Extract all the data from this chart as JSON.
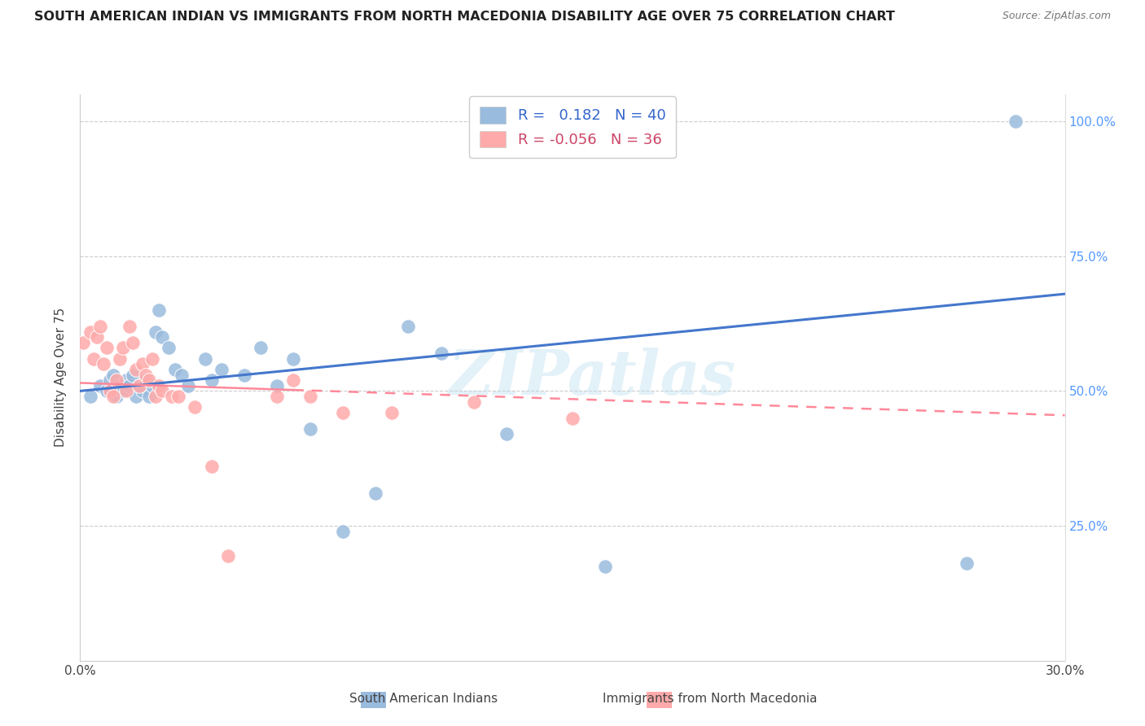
{
  "title": "SOUTH AMERICAN INDIAN VS IMMIGRANTS FROM NORTH MACEDONIA DISABILITY AGE OVER 75 CORRELATION CHART",
  "source": "Source: ZipAtlas.com",
  "ylabel": "Disability Age Over 75",
  "xlim": [
    0.0,
    0.3
  ],
  "ylim": [
    0.0,
    1.05
  ],
  "xticks": [
    0.0,
    0.05,
    0.1,
    0.15,
    0.2,
    0.25,
    0.3
  ],
  "xticklabels": [
    "0.0%",
    "",
    "",
    "",
    "",
    "",
    "30.0%"
  ],
  "ytick_right_vals": [
    0.0,
    0.25,
    0.5,
    0.75,
    1.0
  ],
  "ytick_right_labels": [
    "",
    "25.0%",
    "50.0%",
    "75.0%",
    "100.0%"
  ],
  "legend_label1": "South American Indians",
  "legend_label2": "Immigrants from North Macedonia",
  "r1": 0.182,
  "n1": 40,
  "r2": -0.056,
  "n2": 36,
  "color_blue": "#99BBDD",
  "color_pink": "#FFAAAA",
  "line_color1": "#4477CC",
  "line_color2": "#FF8899",
  "watermark": "ZIPatlas",
  "blue_points_x": [
    0.003,
    0.006,
    0.008,
    0.009,
    0.01,
    0.011,
    0.012,
    0.013,
    0.014,
    0.015,
    0.016,
    0.017,
    0.018,
    0.019,
    0.02,
    0.021,
    0.022,
    0.023,
    0.024,
    0.025,
    0.027,
    0.029,
    0.031,
    0.033,
    0.038,
    0.04,
    0.043,
    0.05,
    0.055,
    0.06,
    0.065,
    0.07,
    0.08,
    0.09,
    0.1,
    0.11,
    0.13,
    0.16,
    0.27,
    0.285
  ],
  "blue_points_y": [
    0.49,
    0.51,
    0.5,
    0.52,
    0.53,
    0.49,
    0.51,
    0.5,
    0.52,
    0.51,
    0.53,
    0.49,
    0.51,
    0.5,
    0.52,
    0.49,
    0.51,
    0.61,
    0.65,
    0.6,
    0.58,
    0.54,
    0.53,
    0.51,
    0.56,
    0.52,
    0.54,
    0.53,
    0.58,
    0.51,
    0.56,
    0.43,
    0.24,
    0.31,
    0.62,
    0.57,
    0.42,
    0.175,
    0.18,
    1.0
  ],
  "pink_points_x": [
    0.001,
    0.003,
    0.004,
    0.005,
    0.006,
    0.007,
    0.008,
    0.009,
    0.01,
    0.011,
    0.012,
    0.013,
    0.014,
    0.015,
    0.016,
    0.017,
    0.018,
    0.019,
    0.02,
    0.021,
    0.022,
    0.023,
    0.024,
    0.025,
    0.028,
    0.03,
    0.035,
    0.04,
    0.045,
    0.06,
    0.065,
    0.07,
    0.08,
    0.095,
    0.12,
    0.15
  ],
  "pink_points_y": [
    0.59,
    0.61,
    0.56,
    0.6,
    0.62,
    0.55,
    0.58,
    0.5,
    0.49,
    0.52,
    0.56,
    0.58,
    0.5,
    0.62,
    0.59,
    0.54,
    0.51,
    0.55,
    0.53,
    0.52,
    0.56,
    0.49,
    0.51,
    0.5,
    0.49,
    0.49,
    0.47,
    0.36,
    0.195,
    0.49,
    0.52,
    0.49,
    0.46,
    0.46,
    0.48,
    0.45
  ]
}
